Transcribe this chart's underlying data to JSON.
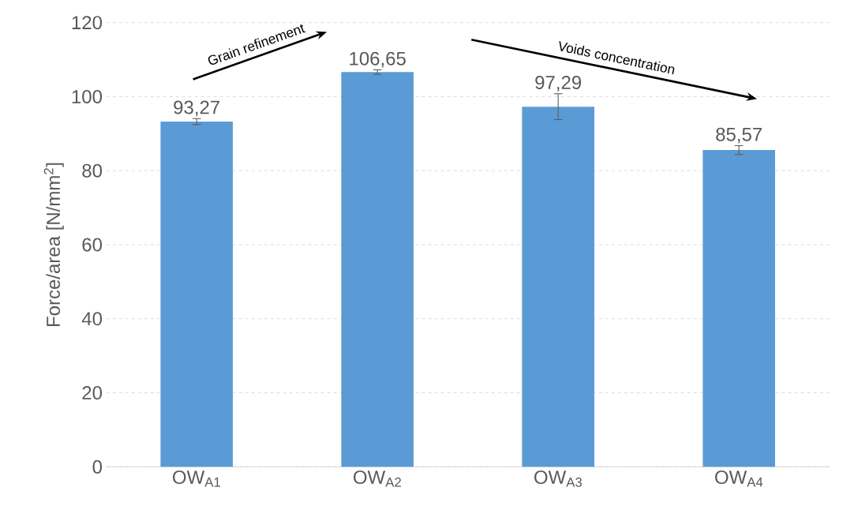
{
  "chart_data": {
    "type": "bar",
    "ylabel": "Force/area [N/mm$^{2}$]",
    "categories": [
      "OW$_{A1}$",
      "OW$_{A2}$",
      "OW$_{A3}$",
      "OW$_{A4}$"
    ],
    "values": [
      93.27,
      106.65,
      97.29,
      85.57
    ],
    "errors": [
      0.8,
      0.6,
      3.5,
      1.2
    ],
    "value_labels": [
      "93,27",
      "106,65",
      "97,29",
      "85,57"
    ],
    "color": "#5b9bd5",
    "ylim": [
      0,
      120
    ],
    "yticks": [
      0,
      20,
      40,
      60,
      80,
      100,
      120
    ],
    "grid": "y",
    "annotations": [
      "Grain refinement",
      "Voids concentration"
    ]
  }
}
